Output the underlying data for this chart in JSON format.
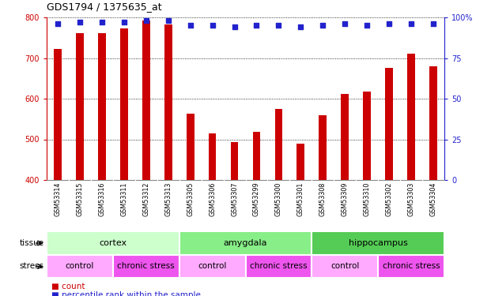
{
  "title": "GDS1794 / 1375635_at",
  "samples": [
    "GSM53314",
    "GSM53315",
    "GSM53316",
    "GSM53311",
    "GSM53312",
    "GSM53313",
    "GSM53305",
    "GSM53306",
    "GSM53307",
    "GSM53299",
    "GSM53300",
    "GSM53301",
    "GSM53308",
    "GSM53309",
    "GSM53310",
    "GSM53302",
    "GSM53303",
    "GSM53304"
  ],
  "counts": [
    722,
    762,
    762,
    772,
    793,
    782,
    563,
    515,
    493,
    518,
    575,
    490,
    560,
    612,
    617,
    675,
    710,
    680
  ],
  "percentiles": [
    96,
    97,
    97,
    97,
    98,
    98,
    95,
    95,
    94,
    95,
    95,
    94,
    95,
    96,
    95,
    96,
    96,
    96
  ],
  "bar_color": "#cc0000",
  "dot_color": "#2222cc",
  "ylim_left": [
    400,
    800
  ],
  "ylim_right": [
    0,
    100
  ],
  "yticks_left": [
    400,
    500,
    600,
    700,
    800
  ],
  "yticks_right": [
    0,
    25,
    50,
    75,
    100
  ],
  "tissue_groups": [
    {
      "label": "cortex",
      "start": 0,
      "end": 6,
      "color": "#ccffcc"
    },
    {
      "label": "amygdala",
      "start": 6,
      "end": 12,
      "color": "#88ee88"
    },
    {
      "label": "hippocampus",
      "start": 12,
      "end": 18,
      "color": "#55cc55"
    }
  ],
  "stress_groups": [
    {
      "label": "control",
      "start": 0,
      "end": 3,
      "color": "#ffaaff"
    },
    {
      "label": "chronic stress",
      "start": 3,
      "end": 6,
      "color": "#ee55ee"
    },
    {
      "label": "control",
      "start": 6,
      "end": 9,
      "color": "#ffaaff"
    },
    {
      "label": "chronic stress",
      "start": 9,
      "end": 12,
      "color": "#ee55ee"
    },
    {
      "label": "control",
      "start": 12,
      "end": 15,
      "color": "#ffaaff"
    },
    {
      "label": "chronic stress",
      "start": 15,
      "end": 18,
      "color": "#ee55ee"
    }
  ],
  "bg_color": "#ffffff",
  "tick_color_left": "#cc0000",
  "tick_color_right": "#2222cc",
  "bar_width": 0.35
}
